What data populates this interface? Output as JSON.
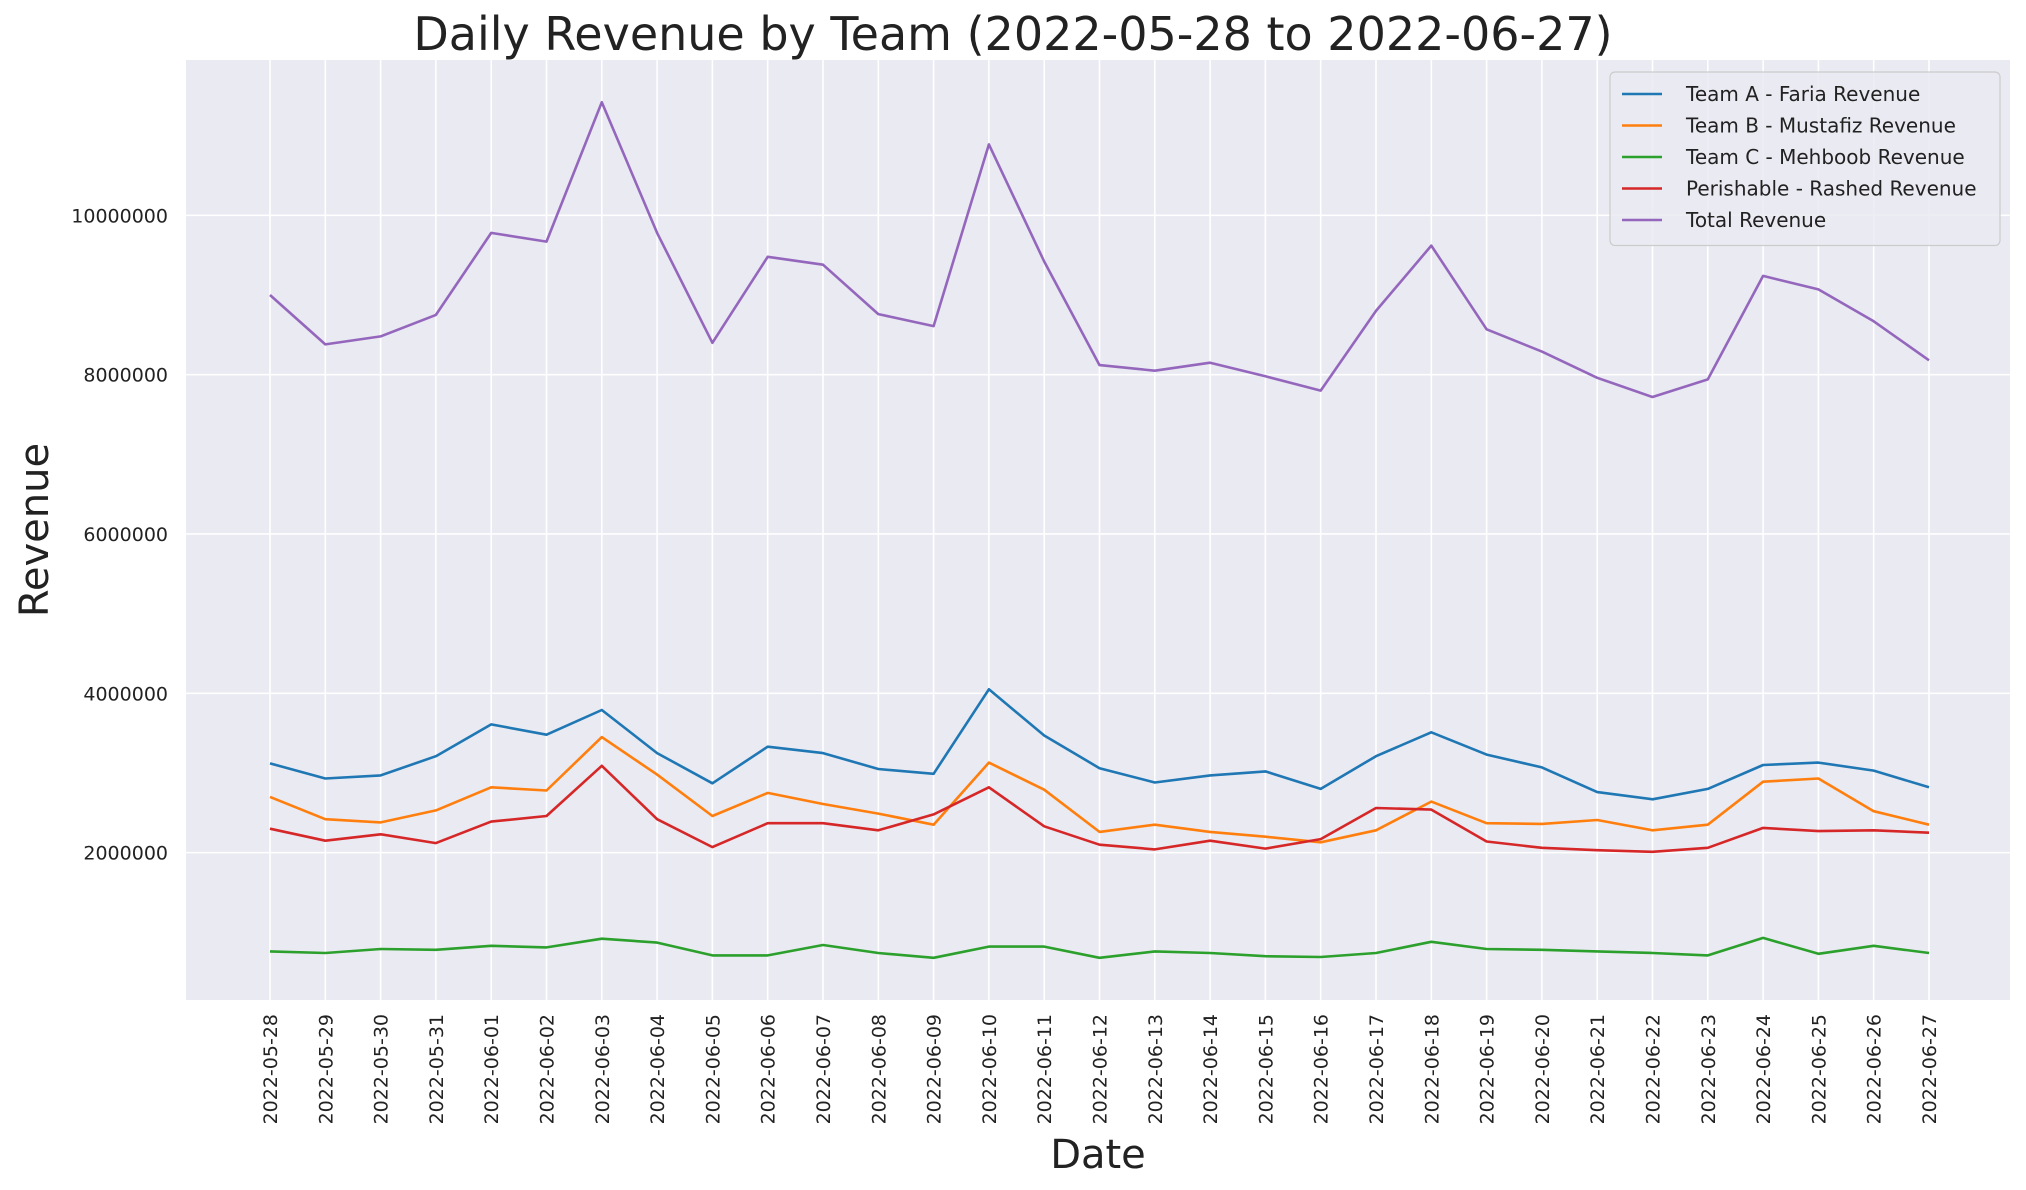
{
  "chart_data": {
    "type": "line",
    "title": "Daily Revenue by Team (2022-05-28 to 2022-06-27)",
    "xlabel": "Date",
    "ylabel": "Revenue",
    "ylim": [
      150000,
      11950000
    ],
    "yticks": [
      2000000,
      4000000,
      6000000,
      8000000,
      10000000
    ],
    "grid": true,
    "legend_position": "top-right",
    "categories": [
      "2022-05-28",
      "2022-05-29",
      "2022-05-30",
      "2022-05-31",
      "2022-06-01",
      "2022-06-02",
      "2022-06-03",
      "2022-06-04",
      "2022-06-05",
      "2022-06-06",
      "2022-06-07",
      "2022-06-08",
      "2022-06-09",
      "2022-06-10",
      "2022-06-11",
      "2022-06-12",
      "2022-06-13",
      "2022-06-14",
      "2022-06-15",
      "2022-06-16",
      "2022-06-17",
      "2022-06-18",
      "2022-06-19",
      "2022-06-20",
      "2022-06-21",
      "2022-06-22",
      "2022-06-23",
      "2022-06-24",
      "2022-06-25",
      "2022-06-26",
      "2022-06-27"
    ],
    "series": [
      {
        "name": "Team A - Faria Revenue",
        "color": "#1f77b4",
        "values": [
          3120000,
          2930000,
          2970000,
          3210000,
          3610000,
          3480000,
          3790000,
          3250000,
          2870000,
          3330000,
          3250000,
          3050000,
          2990000,
          4050000,
          3470000,
          3060000,
          2880000,
          2970000,
          3020000,
          2800000,
          3210000,
          3510000,
          3230000,
          3070000,
          2760000,
          2670000,
          2800000,
          3100000,
          3130000,
          3030000,
          2820000
        ]
      },
      {
        "name": "Team B - Mustafiz Revenue",
        "color": "#ff7f0e",
        "values": [
          2700000,
          2420000,
          2380000,
          2530000,
          2820000,
          2780000,
          3450000,
          2980000,
          2460000,
          2750000,
          2610000,
          2490000,
          2350000,
          3130000,
          2790000,
          2260000,
          2350000,
          2260000,
          2200000,
          2130000,
          2280000,
          2640000,
          2370000,
          2360000,
          2410000,
          2280000,
          2350000,
          2890000,
          2930000,
          2520000,
          2350000
        ]
      },
      {
        "name": "Team C - Mehboob Revenue",
        "color": "#2ca02c",
        "values": [
          760000,
          740000,
          790000,
          780000,
          830000,
          810000,
          920000,
          870000,
          710000,
          710000,
          840000,
          740000,
          680000,
          820000,
          820000,
          680000,
          760000,
          740000,
          700000,
          690000,
          740000,
          880000,
          790000,
          780000,
          760000,
          740000,
          710000,
          930000,
          730000,
          830000,
          740000
        ]
      },
      {
        "name": "Perishable - Rashed Revenue",
        "color": "#d62728",
        "values": [
          2300000,
          2150000,
          2230000,
          2120000,
          2390000,
          2460000,
          3090000,
          2420000,
          2070000,
          2370000,
          2370000,
          2280000,
          2480000,
          2820000,
          2330000,
          2100000,
          2040000,
          2150000,
          2050000,
          2170000,
          2560000,
          2540000,
          2140000,
          2060000,
          2030000,
          2010000,
          2060000,
          2310000,
          2270000,
          2280000,
          2250000
        ]
      },
      {
        "name": "Total Revenue",
        "color": "#9467bd",
        "values": [
          9000000,
          8380000,
          8480000,
          8750000,
          9780000,
          9670000,
          11420000,
          9780000,
          8400000,
          9480000,
          9380000,
          8760000,
          8610000,
          10890000,
          9420000,
          8120000,
          8050000,
          8150000,
          7980000,
          7800000,
          8800000,
          9620000,
          8570000,
          8290000,
          7960000,
          7720000,
          7940000,
          9240000,
          9070000,
          8670000,
          8180000
        ]
      }
    ]
  }
}
